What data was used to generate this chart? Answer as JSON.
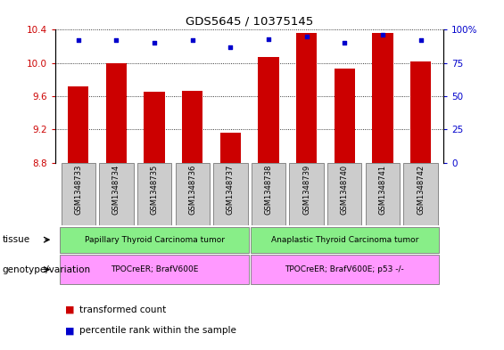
{
  "title": "GDS5645 / 10375145",
  "samples": [
    "GSM1348733",
    "GSM1348734",
    "GSM1348735",
    "GSM1348736",
    "GSM1348737",
    "GSM1348738",
    "GSM1348739",
    "GSM1348740",
    "GSM1348741",
    "GSM1348742"
  ],
  "transformed_count": [
    9.72,
    9.995,
    9.65,
    9.67,
    9.16,
    10.07,
    10.36,
    9.93,
    10.36,
    10.02
  ],
  "percentile_rank": [
    92,
    92,
    90,
    92,
    87,
    93,
    95,
    90,
    96,
    92
  ],
  "ylim_left": [
    8.8,
    10.4
  ],
  "ylim_right": [
    0,
    100
  ],
  "yticks_left": [
    8.8,
    9.2,
    9.6,
    10.0,
    10.4
  ],
  "yticks_right": [
    0,
    25,
    50,
    75,
    100
  ],
  "bar_color": "#cc0000",
  "dot_color": "#0000cc",
  "tissue_labels": [
    "Papillary Thyroid Carcinoma tumor",
    "Anaplastic Thyroid Carcinoma tumor"
  ],
  "genotype_labels": [
    "TPOCreER; BrafV600E",
    "TPOCreER; BrafV600E; p53 -/-"
  ],
  "tissue_color": "#88ee88",
  "genotype_color": "#ff99ff",
  "sample_bg_color": "#cccccc",
  "row_label_tissue": "tissue",
  "row_label_genotype": "genotype/variation",
  "legend_bar": "transformed count",
  "legend_dot": "percentile rank within the sample",
  "bar_color_legend": "#cc0000",
  "dot_color_legend": "#0000cc",
  "xlabel_color": "#cc0000",
  "ylabel_right_color": "#0000cc",
  "title_color": "#000000",
  "bar_width": 0.55
}
